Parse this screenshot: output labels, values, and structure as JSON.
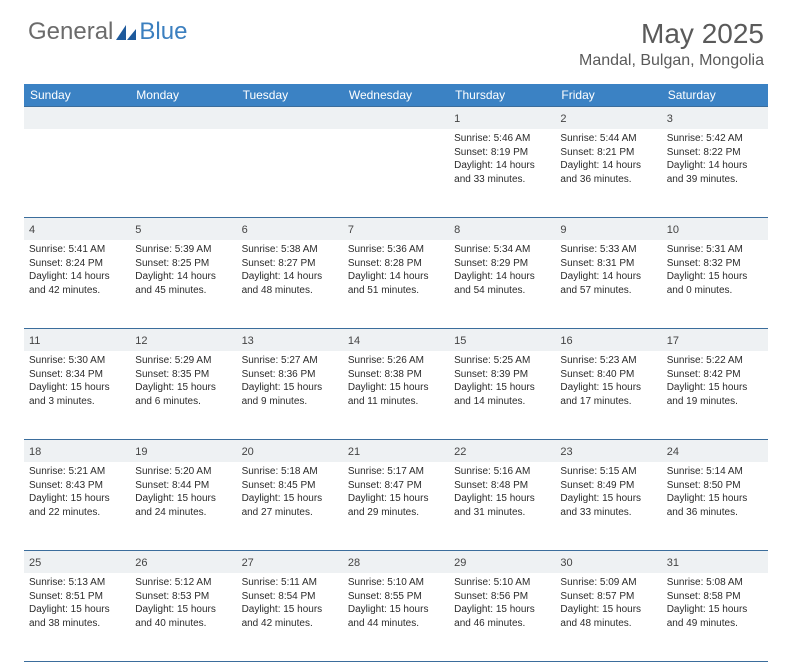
{
  "brand": {
    "text1": "General",
    "text2": "Blue",
    "text_color1": "#6b6b6b",
    "text_color2": "#3b7fbf",
    "icon_color": "#1e5a9c"
  },
  "title": {
    "month": "May 2025",
    "location": "Mandal, Bulgan, Mongolia",
    "month_fontsize": 28,
    "location_fontsize": 16
  },
  "weekday_header": {
    "background_color": "#3b82c4",
    "text_color": "#ffffff",
    "labels": [
      "Sunday",
      "Monday",
      "Tuesday",
      "Wednesday",
      "Thursday",
      "Friday",
      "Saturday"
    ]
  },
  "grid": {
    "border_color": "#3b6d9c",
    "daynum_bg": "#eef1f3",
    "cell_bg": "#ffffff",
    "text_color": "#2b2b2b",
    "fontsize_detail": 10,
    "fontsize_daynum": 11
  },
  "weeks": [
    [
      {
        "num": "",
        "lines": []
      },
      {
        "num": "",
        "lines": []
      },
      {
        "num": "",
        "lines": []
      },
      {
        "num": "",
        "lines": []
      },
      {
        "num": "1",
        "lines": [
          "Sunrise: 5:46 AM",
          "Sunset: 8:19 PM",
          "Daylight: 14 hours",
          "and 33 minutes."
        ]
      },
      {
        "num": "2",
        "lines": [
          "Sunrise: 5:44 AM",
          "Sunset: 8:21 PM",
          "Daylight: 14 hours",
          "and 36 minutes."
        ]
      },
      {
        "num": "3",
        "lines": [
          "Sunrise: 5:42 AM",
          "Sunset: 8:22 PM",
          "Daylight: 14 hours",
          "and 39 minutes."
        ]
      }
    ],
    [
      {
        "num": "4",
        "lines": [
          "Sunrise: 5:41 AM",
          "Sunset: 8:24 PM",
          "Daylight: 14 hours",
          "and 42 minutes."
        ]
      },
      {
        "num": "5",
        "lines": [
          "Sunrise: 5:39 AM",
          "Sunset: 8:25 PM",
          "Daylight: 14 hours",
          "and 45 minutes."
        ]
      },
      {
        "num": "6",
        "lines": [
          "Sunrise: 5:38 AM",
          "Sunset: 8:27 PM",
          "Daylight: 14 hours",
          "and 48 minutes."
        ]
      },
      {
        "num": "7",
        "lines": [
          "Sunrise: 5:36 AM",
          "Sunset: 8:28 PM",
          "Daylight: 14 hours",
          "and 51 minutes."
        ]
      },
      {
        "num": "8",
        "lines": [
          "Sunrise: 5:34 AM",
          "Sunset: 8:29 PM",
          "Daylight: 14 hours",
          "and 54 minutes."
        ]
      },
      {
        "num": "9",
        "lines": [
          "Sunrise: 5:33 AM",
          "Sunset: 8:31 PM",
          "Daylight: 14 hours",
          "and 57 minutes."
        ]
      },
      {
        "num": "10",
        "lines": [
          "Sunrise: 5:31 AM",
          "Sunset: 8:32 PM",
          "Daylight: 15 hours",
          "and 0 minutes."
        ]
      }
    ],
    [
      {
        "num": "11",
        "lines": [
          "Sunrise: 5:30 AM",
          "Sunset: 8:34 PM",
          "Daylight: 15 hours",
          "and 3 minutes."
        ]
      },
      {
        "num": "12",
        "lines": [
          "Sunrise: 5:29 AM",
          "Sunset: 8:35 PM",
          "Daylight: 15 hours",
          "and 6 minutes."
        ]
      },
      {
        "num": "13",
        "lines": [
          "Sunrise: 5:27 AM",
          "Sunset: 8:36 PM",
          "Daylight: 15 hours",
          "and 9 minutes."
        ]
      },
      {
        "num": "14",
        "lines": [
          "Sunrise: 5:26 AM",
          "Sunset: 8:38 PM",
          "Daylight: 15 hours",
          "and 11 minutes."
        ]
      },
      {
        "num": "15",
        "lines": [
          "Sunrise: 5:25 AM",
          "Sunset: 8:39 PM",
          "Daylight: 15 hours",
          "and 14 minutes."
        ]
      },
      {
        "num": "16",
        "lines": [
          "Sunrise: 5:23 AM",
          "Sunset: 8:40 PM",
          "Daylight: 15 hours",
          "and 17 minutes."
        ]
      },
      {
        "num": "17",
        "lines": [
          "Sunrise: 5:22 AM",
          "Sunset: 8:42 PM",
          "Daylight: 15 hours",
          "and 19 minutes."
        ]
      }
    ],
    [
      {
        "num": "18",
        "lines": [
          "Sunrise: 5:21 AM",
          "Sunset: 8:43 PM",
          "Daylight: 15 hours",
          "and 22 minutes."
        ]
      },
      {
        "num": "19",
        "lines": [
          "Sunrise: 5:20 AM",
          "Sunset: 8:44 PM",
          "Daylight: 15 hours",
          "and 24 minutes."
        ]
      },
      {
        "num": "20",
        "lines": [
          "Sunrise: 5:18 AM",
          "Sunset: 8:45 PM",
          "Daylight: 15 hours",
          "and 27 minutes."
        ]
      },
      {
        "num": "21",
        "lines": [
          "Sunrise: 5:17 AM",
          "Sunset: 8:47 PM",
          "Daylight: 15 hours",
          "and 29 minutes."
        ]
      },
      {
        "num": "22",
        "lines": [
          "Sunrise: 5:16 AM",
          "Sunset: 8:48 PM",
          "Daylight: 15 hours",
          "and 31 minutes."
        ]
      },
      {
        "num": "23",
        "lines": [
          "Sunrise: 5:15 AM",
          "Sunset: 8:49 PM",
          "Daylight: 15 hours",
          "and 33 minutes."
        ]
      },
      {
        "num": "24",
        "lines": [
          "Sunrise: 5:14 AM",
          "Sunset: 8:50 PM",
          "Daylight: 15 hours",
          "and 36 minutes."
        ]
      }
    ],
    [
      {
        "num": "25",
        "lines": [
          "Sunrise: 5:13 AM",
          "Sunset: 8:51 PM",
          "Daylight: 15 hours",
          "and 38 minutes."
        ]
      },
      {
        "num": "26",
        "lines": [
          "Sunrise: 5:12 AM",
          "Sunset: 8:53 PM",
          "Daylight: 15 hours",
          "and 40 minutes."
        ]
      },
      {
        "num": "27",
        "lines": [
          "Sunrise: 5:11 AM",
          "Sunset: 8:54 PM",
          "Daylight: 15 hours",
          "and 42 minutes."
        ]
      },
      {
        "num": "28",
        "lines": [
          "Sunrise: 5:10 AM",
          "Sunset: 8:55 PM",
          "Daylight: 15 hours",
          "and 44 minutes."
        ]
      },
      {
        "num": "29",
        "lines": [
          "Sunrise: 5:10 AM",
          "Sunset: 8:56 PM",
          "Daylight: 15 hours",
          "and 46 minutes."
        ]
      },
      {
        "num": "30",
        "lines": [
          "Sunrise: 5:09 AM",
          "Sunset: 8:57 PM",
          "Daylight: 15 hours",
          "and 48 minutes."
        ]
      },
      {
        "num": "31",
        "lines": [
          "Sunrise: 5:08 AM",
          "Sunset: 8:58 PM",
          "Daylight: 15 hours",
          "and 49 minutes."
        ]
      }
    ]
  ]
}
